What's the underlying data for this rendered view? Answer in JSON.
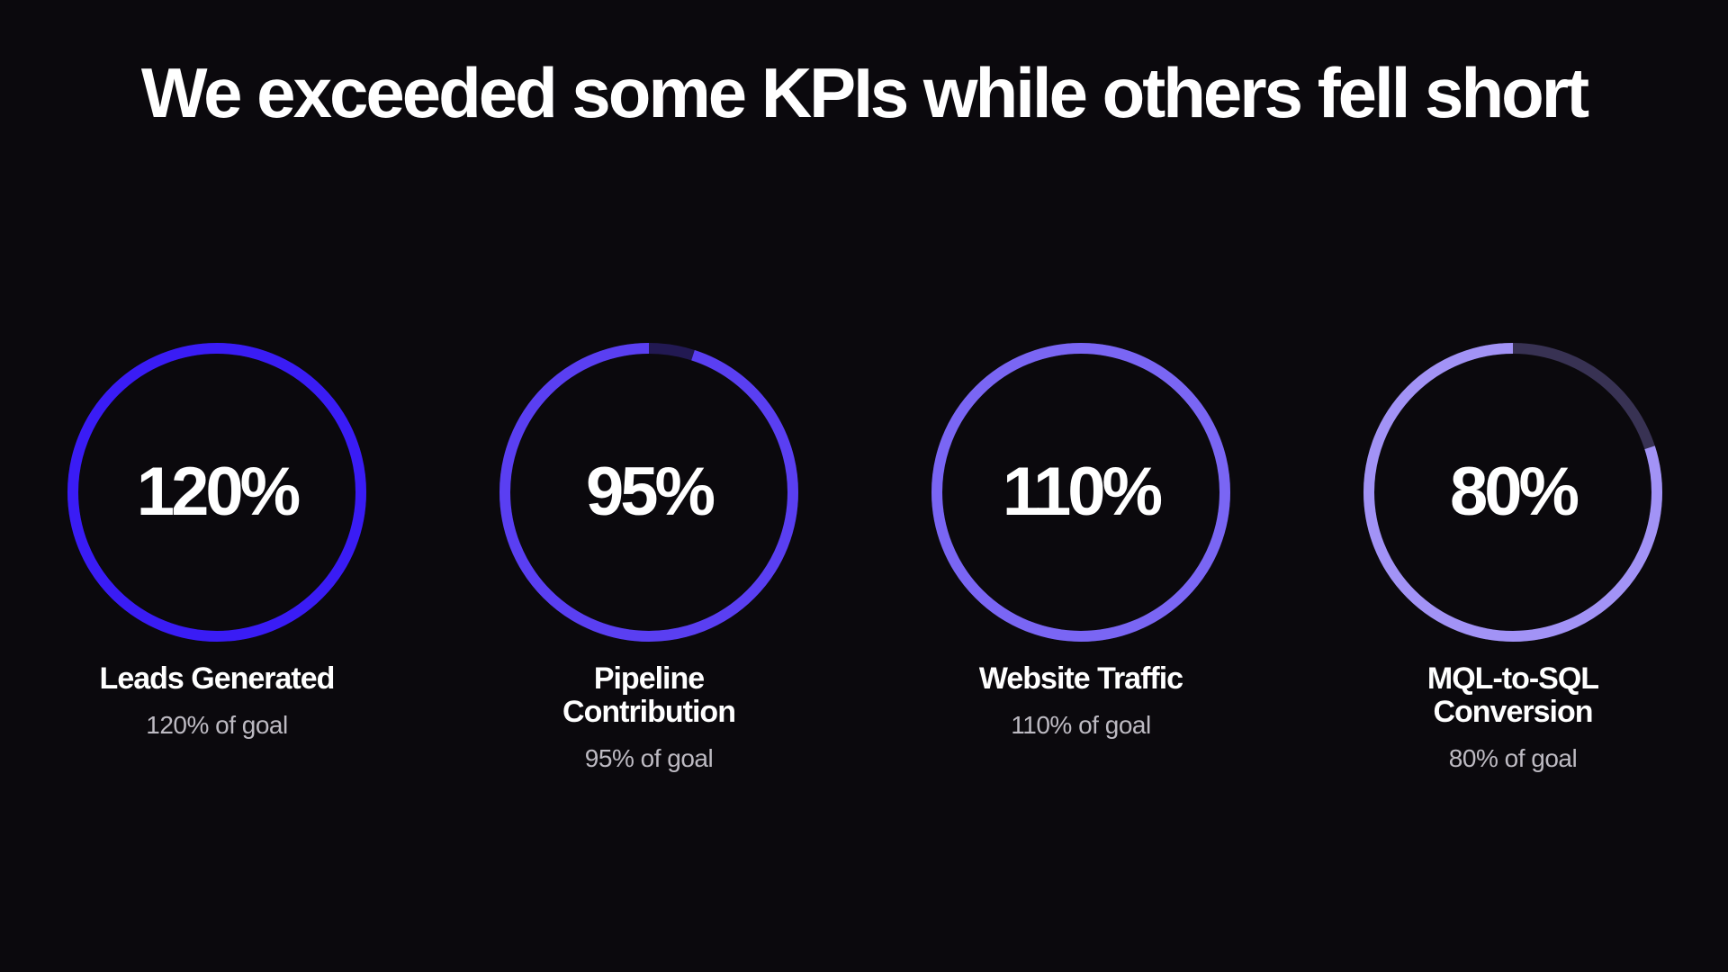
{
  "slide": {
    "title": "We exceeded some KPIs while others fell short"
  },
  "chart_data": {
    "type": "radial-progress",
    "title": "We exceeded some KPIs while others fell short",
    "goal_percent": 100,
    "series": [
      {
        "name": "Leads Generated",
        "label_lines": [
          "Leads Generated"
        ],
        "value": 120,
        "display": "120%",
        "caption": "120% of goal",
        "color": "#3a1cf5"
      },
      {
        "name": "Pipeline Contribution",
        "label_lines": [
          "Pipeline",
          "Contribution"
        ],
        "value": 95,
        "display": "95%",
        "caption": "95% of goal",
        "color": "#5a3ff2"
      },
      {
        "name": "Website Traffic",
        "label_lines": [
          "Website Traffic"
        ],
        "value": 110,
        "display": "110%",
        "caption": "110% of goal",
        "color": "#7a66f4"
      },
      {
        "name": "MQL-to-SQL Conversion",
        "label_lines": [
          "MQL-to-SQL",
          "Conversion"
        ],
        "value": 80,
        "display": "80%",
        "caption": "80% of goal",
        "color": "#a293f6"
      }
    ]
  }
}
